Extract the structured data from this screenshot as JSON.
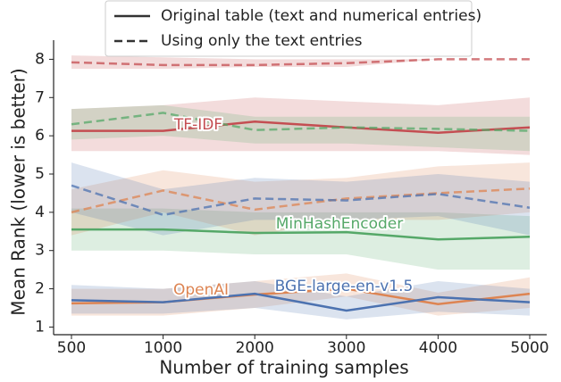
{
  "chart_data": {
    "type": "line",
    "x_label": "Number of training samples",
    "y_label": "Mean Rank (lower is better)",
    "categories": [
      "500",
      "1000",
      "2000",
      "3000",
      "4000",
      "5000"
    ],
    "ylim": [
      0.8,
      8.5
    ],
    "yticks": [
      1,
      2,
      3,
      4,
      5,
      6,
      7,
      8
    ],
    "legend": [
      {
        "name": "Original table (text and numerical entries)",
        "dash": "solid"
      },
      {
        "name": "Using only the text entries",
        "dash": "dashed"
      }
    ],
    "methods": [
      {
        "name": "TF-IDF",
        "color": "#c44e52",
        "series": [
          {
            "dash": "solid",
            "values": [
              6.13,
              6.13,
              6.37,
              6.22,
              6.08,
              6.22
            ],
            "lower": [
              5.6,
              5.6,
              5.6,
              5.6,
              5.6,
              5.5
            ],
            "upper": [
              6.7,
              6.8,
              7.0,
              6.9,
              6.8,
              7.0
            ]
          },
          {
            "dash": "dashed",
            "values": [
              7.92,
              7.85,
              7.85,
              7.9,
              8.0,
              8.0
            ],
            "lower": [
              7.75,
              7.75,
              7.8,
              7.8,
              8.0,
              8.0
            ],
            "upper": [
              8.1,
              8.05,
              8.0,
              8.0,
              8.0,
              8.0
            ]
          }
        ]
      },
      {
        "name": "MinHashEncoder",
        "color": "#55a868",
        "series": [
          {
            "dash": "solid",
            "values": [
              3.55,
              3.55,
              3.46,
              3.48,
              3.29,
              3.36
            ],
            "lower": [
              3.0,
              3.0,
              2.9,
              2.9,
              2.5,
              2.5
            ],
            "upper": [
              4.1,
              4.1,
              4.0,
              4.0,
              4.0,
              3.9
            ]
          },
          {
            "dash": "dashed",
            "values": [
              6.3,
              6.6,
              6.15,
              6.22,
              6.18,
              6.13
            ],
            "lower": [
              5.9,
              6.0,
              5.8,
              5.8,
              5.7,
              5.6
            ],
            "upper": [
              6.7,
              6.8,
              6.5,
              6.5,
              6.5,
              6.5
            ]
          }
        ]
      },
      {
        "name": "OpenAI",
        "color": "#dd8452",
        "series": [
          {
            "dash": "solid",
            "values": [
              1.62,
              1.65,
              1.85,
              2.0,
              1.6,
              1.87
            ],
            "lower": [
              1.3,
              1.3,
              1.5,
              1.8,
              1.3,
              1.5
            ],
            "upper": [
              2.0,
              2.0,
              2.2,
              2.4,
              1.9,
              2.3
            ]
          },
          {
            "dash": "dashed",
            "values": [
              4.0,
              4.57,
              4.07,
              4.36,
              4.5,
              4.62
            ],
            "lower": [
              3.4,
              4.0,
              3.4,
              3.8,
              3.8,
              4.0
            ],
            "upper": [
              4.6,
              5.1,
              4.8,
              4.9,
              5.2,
              5.3
            ]
          }
        ]
      },
      {
        "name": "BGE-large-en-v1.5",
        "color": "#4c72b0",
        "series": [
          {
            "dash": "solid",
            "values": [
              1.7,
              1.65,
              1.87,
              1.43,
              1.78,
              1.65
            ],
            "lower": [
              1.35,
              1.35,
              1.5,
              1.2,
              1.4,
              1.3
            ],
            "upper": [
              2.1,
              2.0,
              2.2,
              1.8,
              2.2,
              2.0
            ]
          },
          {
            "dash": "dashed",
            "values": [
              4.7,
              3.93,
              4.36,
              4.31,
              4.48,
              4.12
            ],
            "lower": [
              4.0,
              3.4,
              3.8,
              3.8,
              3.9,
              3.4
            ],
            "upper": [
              5.3,
              4.6,
              4.9,
              4.8,
              5.0,
              4.8
            ]
          }
        ]
      }
    ]
  }
}
